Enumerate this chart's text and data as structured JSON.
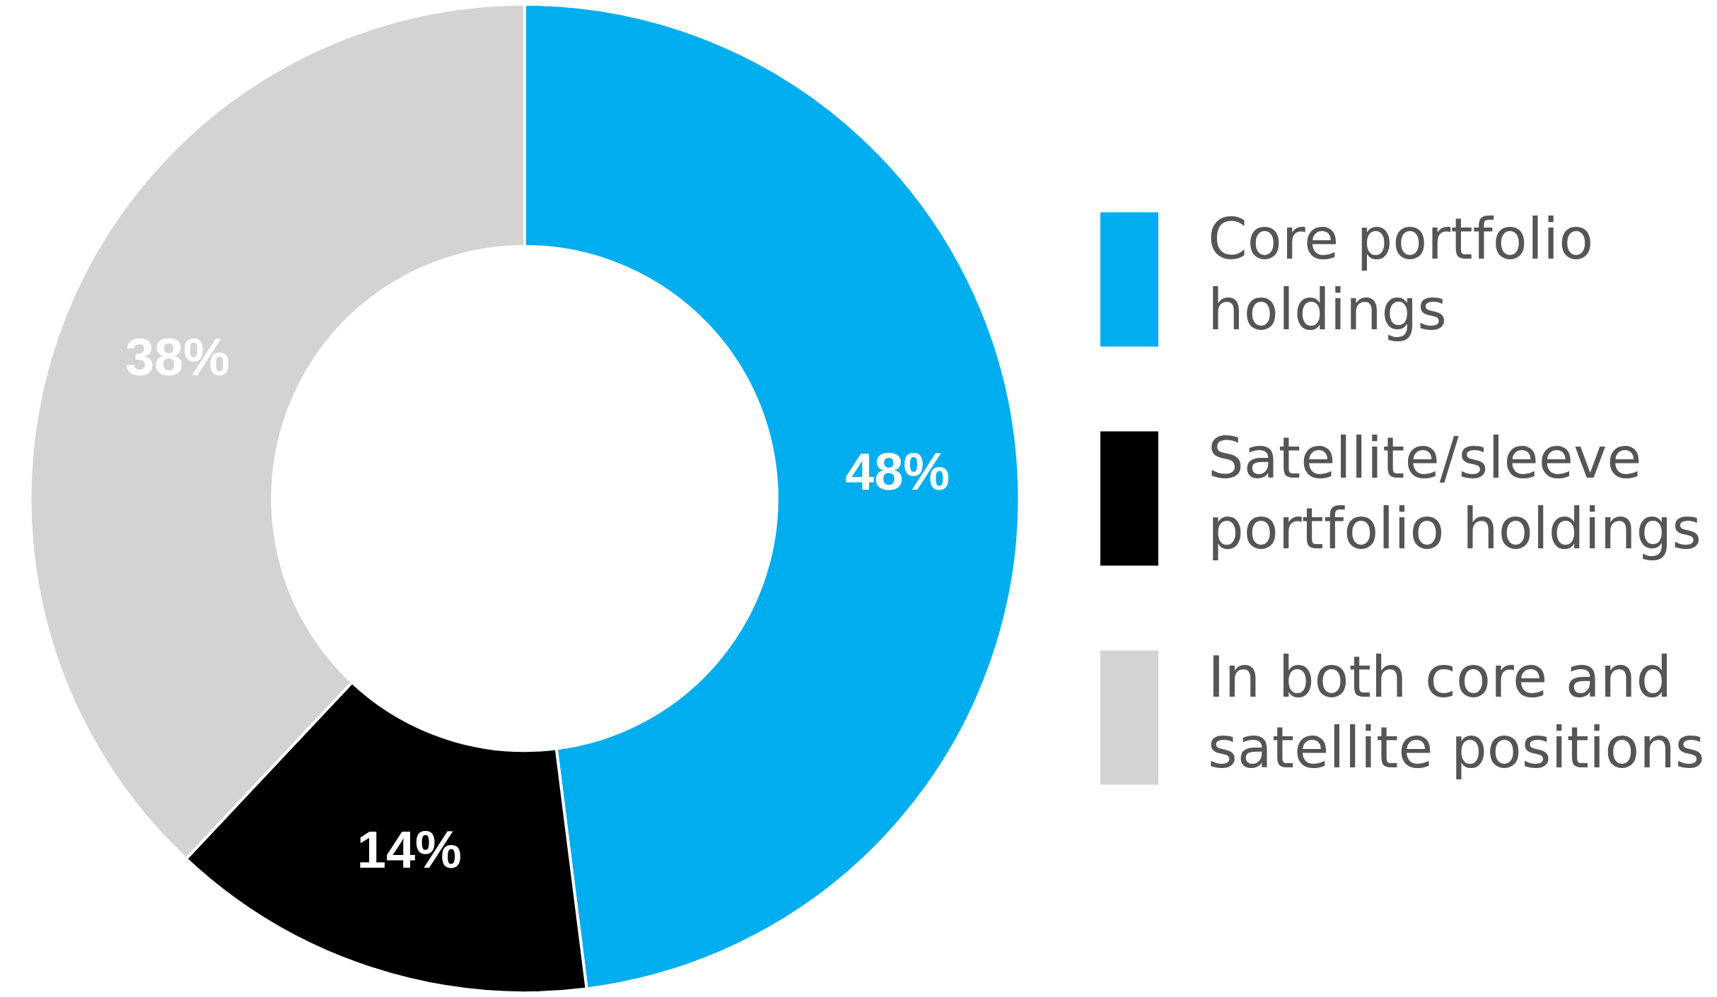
{
  "chart_data": {
    "type": "donut",
    "categories": [
      "Core portfolio holdings",
      "Satellite/sleeve portfolio holdings",
      "In both core and satellite positions"
    ],
    "values": [
      48,
      14,
      38
    ],
    "colors": [
      "#00aeef",
      "#000000",
      "#d3d3d3"
    ],
    "value_labels": [
      "48%",
      "14%",
      "38%"
    ],
    "legend": "right"
  }
}
